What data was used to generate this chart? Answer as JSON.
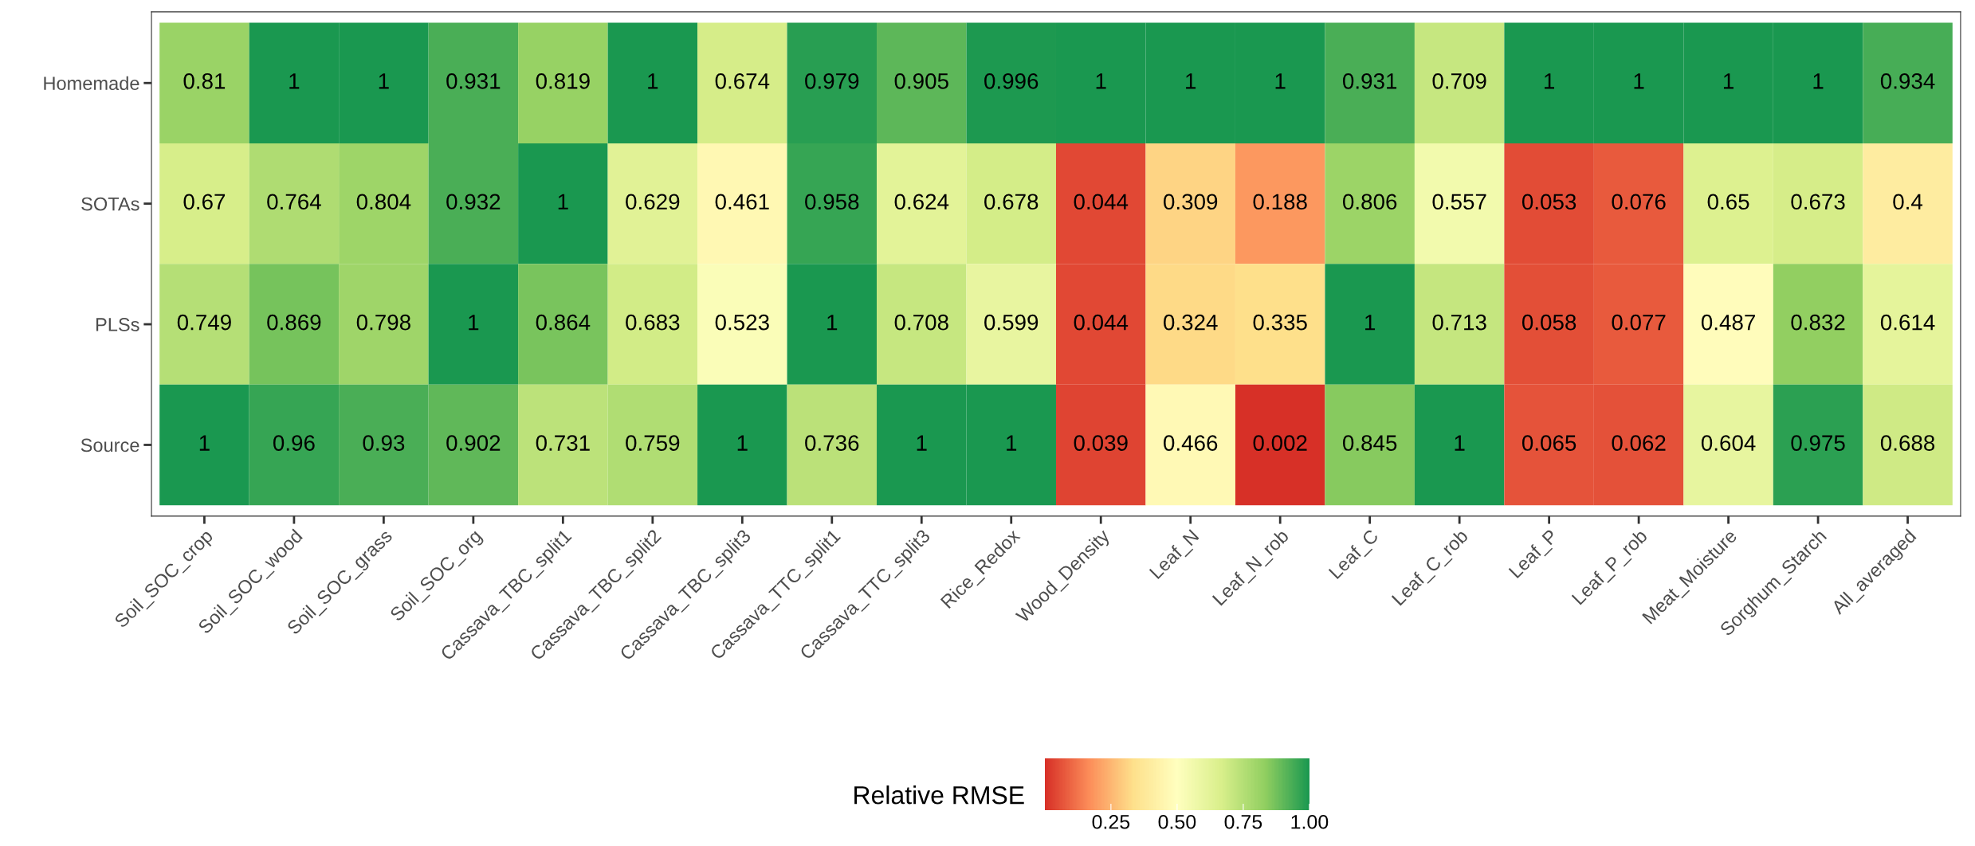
{
  "chart_data": {
    "type": "heatmap",
    "clabel": "Relative RMSE",
    "categories": [
      "Soil_SOC_crop",
      "Soil_SOC_wood",
      "Soil_SOC_grass",
      "Soil_SOC_org",
      "Cassava_TBC_split1",
      "Cassava_TBC_split2",
      "Cassava_TBC_split3",
      "Cassava_TTC_split1",
      "Cassava_TTC_split3",
      "Rice_Redox",
      "Wood_Density",
      "Leaf_N",
      "Leaf_N_rob",
      "Leaf_C",
      "Leaf_C_rob",
      "Leaf_P",
      "Leaf_P_rob",
      "Meat_Moisture",
      "Sorghum_Starch",
      "All_averaged"
    ],
    "y_categories": [
      "Homemade",
      "SOTAs",
      "PLSs",
      "Source"
    ],
    "cells": [
      [
        0.81,
        1,
        1,
        0.931,
        0.819,
        1,
        0.674,
        0.979,
        0.905,
        0.996,
        1,
        1,
        1,
        0.931,
        0.709,
        1,
        1,
        1,
        1,
        0.934
      ],
      [
        0.67,
        0.764,
        0.804,
        0.932,
        1,
        0.629,
        0.461,
        0.958,
        0.624,
        0.678,
        0.044,
        0.309,
        0.188,
        0.806,
        0.557,
        0.053,
        0.076,
        0.65,
        0.673,
        0.4
      ],
      [
        0.749,
        0.869,
        0.798,
        1,
        0.864,
        0.683,
        0.523,
        1,
        0.708,
        0.599,
        0.044,
        0.324,
        0.335,
        1,
        0.713,
        0.058,
        0.077,
        0.487,
        0.832,
        0.614
      ],
      [
        1,
        0.96,
        0.93,
        0.902,
        0.731,
        0.759,
        1,
        0.736,
        1,
        1,
        0.039,
        0.466,
        0.002,
        0.845,
        1,
        0.065,
        0.062,
        0.604,
        0.975,
        0.688
      ]
    ],
    "clim": [
      0,
      1
    ],
    "cticks": [
      {
        "value": 0.25,
        "label": "0.25"
      },
      {
        "value": 0.5,
        "label": "0.50"
      },
      {
        "value": 0.75,
        "label": "0.75"
      },
      {
        "value": 1,
        "label": "1.00"
      }
    ],
    "data_labels": true,
    "grid": false
  }
}
